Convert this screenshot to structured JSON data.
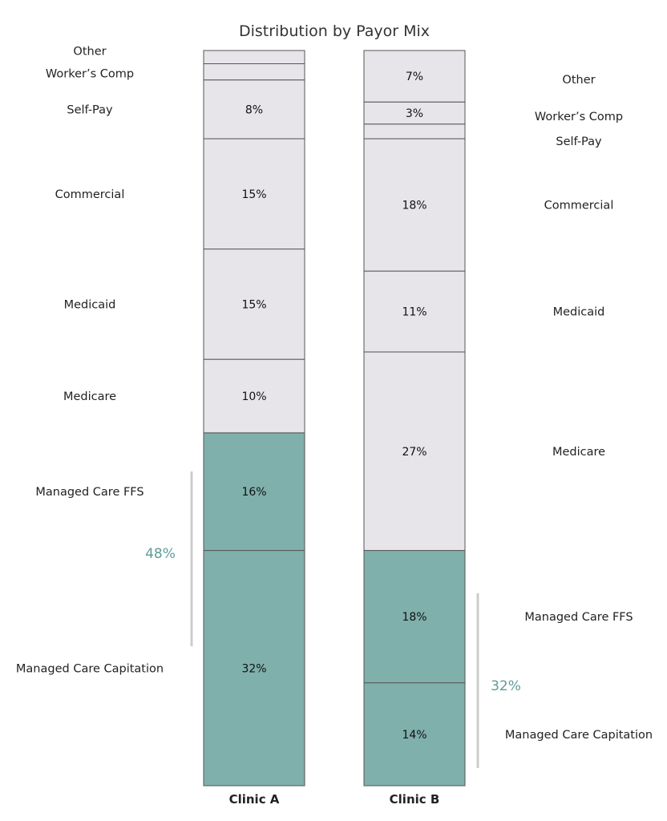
{
  "chart_data": {
    "type": "bar",
    "stacked": true,
    "normalized": true,
    "title": "Distribution by Payor Mix",
    "ylim": [
      0,
      100
    ],
    "colors": {
      "managed_care": "#7fb0ac",
      "other": "#e7e5e9",
      "stroke": "#555555",
      "bracket_line": "#cccccc",
      "bracket_text": "#5f9c97"
    },
    "clinics": [
      {
        "name": "Clinic A",
        "label_side": "left",
        "segments": [
          {
            "category": "Managed Care Capitation",
            "value": 32,
            "label": "32%",
            "managed": true
          },
          {
            "category": "Managed Care FFS",
            "value": 16,
            "label": "16%",
            "managed": true
          },
          {
            "category": "Medicare",
            "value": 10,
            "label": "10%",
            "managed": false
          },
          {
            "category": "Medicaid",
            "value": 15,
            "label": "15%",
            "managed": false
          },
          {
            "category": "Commercial",
            "value": 15,
            "label": "15%",
            "managed": false
          },
          {
            "category": "Self-Pay",
            "value": 8,
            "label": "8%",
            "managed": false
          },
          {
            "category": "Worker's Comp",
            "value": 2.2,
            "label": "",
            "managed": false
          },
          {
            "category": "Other",
            "value": 1.8,
            "label": "",
            "managed": false
          }
        ],
        "managed_care_total": "48%"
      },
      {
        "name": "Clinic B",
        "label_side": "right",
        "segments": [
          {
            "category": "Managed Care Capitation",
            "value": 14,
            "label": "14%",
            "managed": true
          },
          {
            "category": "Managed Care FFS",
            "value": 18,
            "label": "18%",
            "managed": true
          },
          {
            "category": "Medicare",
            "value": 27,
            "label": "27%",
            "managed": false
          },
          {
            "category": "Medicaid",
            "value": 11,
            "label": "11%",
            "managed": false
          },
          {
            "category": "Commercial",
            "value": 18,
            "label": "18%",
            "managed": false
          },
          {
            "category": "Self-Pay",
            "value": 2,
            "label": "",
            "managed": false
          },
          {
            "category": "Worker's Comp",
            "value": 3,
            "label": "3%",
            "managed": false
          },
          {
            "category": "Other",
            "value": 7,
            "label": "7%",
            "managed": false
          }
        ],
        "managed_care_total": "32%"
      }
    ],
    "category_display": {
      "Other": "Other",
      "Worker's Comp": "Worker’s Comp",
      "Self-Pay": "Self-Pay",
      "Commercial": "Commercial",
      "Medicaid": "Medicaid",
      "Medicare": "Medicare",
      "Managed Care FFS": "Managed Care FFS",
      "Managed Care Capitation": "Managed Care Capitation"
    }
  }
}
